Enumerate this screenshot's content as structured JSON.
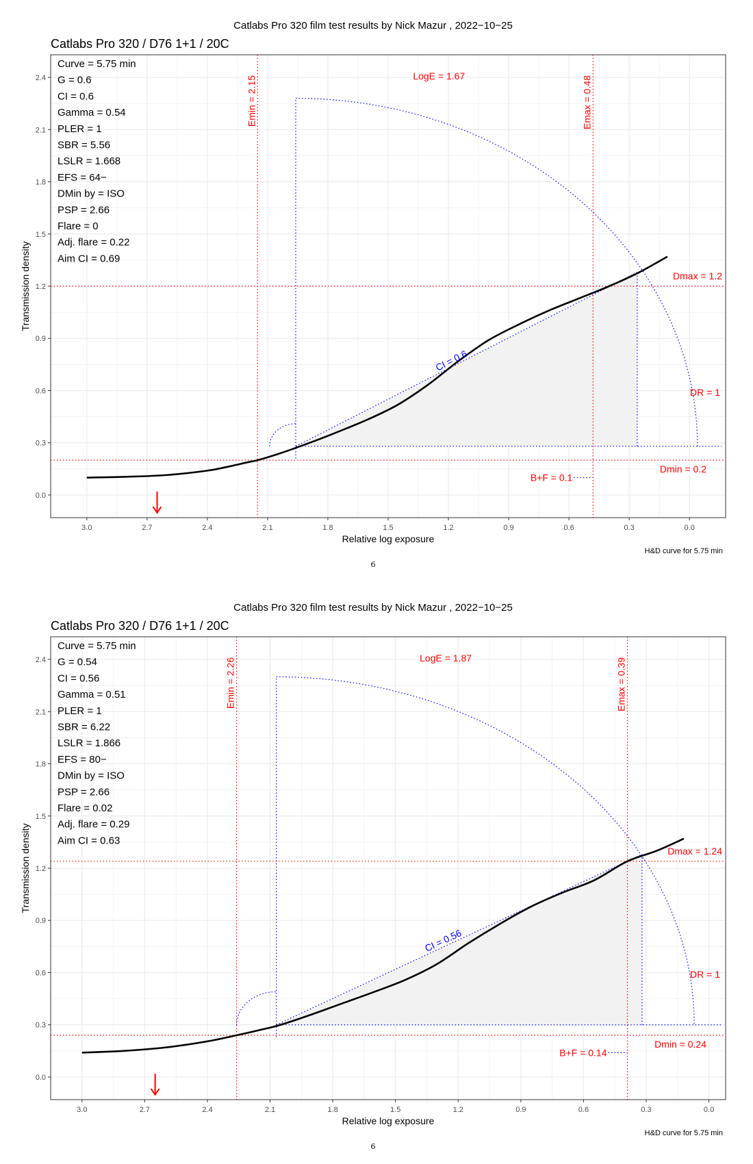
{
  "pages": [
    {
      "super_title": "Catlabs Pro 320 film test results by Nick Mazur , 2022−10−25",
      "caption": "H&D curve for 5.75 min",
      "page_number": "6"
    },
    {
      "super_title": "Catlabs Pro 320 film test results by Nick Mazur , 2022−10−25",
      "caption": "H&D curve for 5.75 min",
      "page_number": "6"
    }
  ],
  "colors": {
    "curve": "#000000",
    "reference": "#ff0000",
    "construction": "#0000ff",
    "fill": "#f2f2f2",
    "grid": "#ebebeb",
    "panel_border": "#333333"
  },
  "chart_data": [
    {
      "type": "line",
      "title": "Catlabs Pro 320 / D76 1+1 / 20C",
      "xlabel": "Relative log exposure",
      "ylabel": "Transmission density",
      "xlim": [
        3.18,
        -0.18
      ],
      "ylim": [
        -0.13,
        2.53
      ],
      "x_reversed": true,
      "x_ticks": [
        3.0,
        2.7,
        2.4,
        2.1,
        1.8,
        1.5,
        1.2,
        0.9,
        0.6,
        0.3,
        0.0
      ],
      "x_tick_labels": [
        "3.0",
        "2.7",
        "2.4",
        "2.1",
        "1.8",
        "1.5",
        "1.2",
        "0.9",
        "0.6",
        "0.3",
        "0.0"
      ],
      "y_ticks": [
        0.0,
        0.3,
        0.6,
        0.9,
        1.2,
        1.5,
        1.8,
        2.1,
        2.4
      ],
      "y_tick_labels": [
        "0.0",
        "0.3",
        "0.6",
        "0.9",
        "1.2",
        "1.5",
        "1.8",
        "2.1",
        "2.4"
      ],
      "grid": true,
      "series": [
        {
          "x": [
            3.0,
            2.8,
            2.6,
            2.4,
            2.3,
            2.2,
            2.15,
            2.05,
            1.95,
            1.8,
            1.6,
            1.45,
            1.3,
            1.15,
            1.0,
            0.85,
            0.7,
            0.55,
            0.4,
            0.25,
            0.11
          ],
          "y": [
            0.1,
            0.105,
            0.115,
            0.14,
            0.162,
            0.188,
            0.2,
            0.235,
            0.275,
            0.34,
            0.435,
            0.52,
            0.635,
            0.77,
            0.89,
            0.98,
            1.06,
            1.13,
            1.2,
            1.28,
            1.37
          ]
        }
      ],
      "emin": {
        "x": 2.15,
        "label": "Emin = 2.15"
      },
      "emax": {
        "x": 0.48,
        "label": "Emax = 0.48"
      },
      "dmin": {
        "y": 0.2,
        "label": "Dmin = 0.2"
      },
      "dmax": {
        "y": 1.2,
        "label": "Dmax = 1.2"
      },
      "loge_label": "LogE =  1.67",
      "dr_label": "DR = 1",
      "bf": {
        "y": 0.1,
        "label": "B+F =  0.1"
      },
      "ci_label": "CI = 0.6",
      "fill_triangle": {
        "x1": 1.96,
        "y1": 0.28,
        "x2": 0.26,
        "y2": 1.28
      },
      "ci_line": {
        "x1": 1.96,
        "y1": 0.28,
        "x2": 0.26,
        "y2": 1.28
      },
      "arc_radius": 2.0,
      "small_arc_radius": 0.13,
      "arrow_x": 2.65,
      "stats": [
        "Curve =  5.75 min",
        "G =  0.6",
        "CI =  0.6",
        "Gamma =  0.54",
        "PLER =  1",
        "SBR =  5.56",
        "LSLR =  1.668",
        "EFS = 64−",
        "DMin by = ISO",
        "PSP = 2.66",
        "Flare = 0",
        "Adj. flare = 0.22",
        "Aim CI =  0.69"
      ]
    },
    {
      "type": "line",
      "title": "Catlabs Pro 320 / D76 1+1 / 20C",
      "xlabel": "Relative log exposure",
      "ylabel": "Transmission density",
      "xlim": [
        3.15,
        -0.08
      ],
      "ylim": [
        -0.13,
        2.53
      ],
      "x_reversed": true,
      "x_ticks": [
        3.0,
        2.7,
        2.4,
        2.1,
        1.8,
        1.5,
        1.2,
        0.9,
        0.6,
        0.3,
        0.0
      ],
      "x_tick_labels": [
        "3.0",
        "2.7",
        "2.4",
        "2.1",
        "1.8",
        "1.5",
        "1.2",
        "0.9",
        "0.6",
        "0.3",
        "0.0"
      ],
      "y_ticks": [
        0.0,
        0.3,
        0.6,
        0.9,
        1.2,
        1.5,
        1.8,
        2.1,
        2.4
      ],
      "y_tick_labels": [
        "0.0",
        "0.3",
        "0.6",
        "0.9",
        "1.2",
        "1.5",
        "1.8",
        "2.1",
        "2.4"
      ],
      "grid": true,
      "series": [
        {
          "x": [
            3.0,
            2.8,
            2.6,
            2.4,
            2.26,
            2.15,
            2.05,
            1.9,
            1.75,
            1.6,
            1.45,
            1.3,
            1.15,
            1.0,
            0.85,
            0.7,
            0.55,
            0.39,
            0.25,
            0.12
          ],
          "y": [
            0.14,
            0.15,
            0.17,
            0.205,
            0.24,
            0.27,
            0.3,
            0.36,
            0.425,
            0.49,
            0.56,
            0.65,
            0.77,
            0.88,
            0.98,
            1.06,
            1.13,
            1.24,
            1.3,
            1.37
          ]
        }
      ],
      "emin": {
        "x": 2.26,
        "label": "Emin = 2.26"
      },
      "emax": {
        "x": 0.39,
        "label": "Emax = 0.39"
      },
      "dmin": {
        "y": 0.24,
        "label": "Dmin = 0.24"
      },
      "dmax": {
        "y": 1.24,
        "label": "Dmax = 1.24"
      },
      "loge_label": "LogE =  1.87",
      "dr_label": "DR = 1",
      "bf": {
        "y": 0.14,
        "label": "B+F =  0.14"
      },
      "ci_label": "CI = 0.56",
      "fill_triangle": {
        "x1": 2.07,
        "y1": 0.3,
        "x2": 0.32,
        "y2": 1.28
      },
      "ci_line": {
        "x1": 2.07,
        "y1": 0.3,
        "x2": 0.32,
        "y2": 1.28
      },
      "arc_radius": 2.0,
      "small_arc_radius": 0.19,
      "arrow_x": 2.65,
      "stats": [
        "Curve =  5.75 min",
        "G =  0.54",
        "CI =  0.56",
        "Gamma =  0.51",
        "PLER =  1",
        "SBR =  6.22",
        "LSLR =  1.866",
        "EFS = 80−",
        "DMin by = ISO",
        "PSP = 2.66",
        "Flare = 0.02",
        "Adj. flare = 0.29",
        "Aim CI =  0.63"
      ]
    }
  ]
}
